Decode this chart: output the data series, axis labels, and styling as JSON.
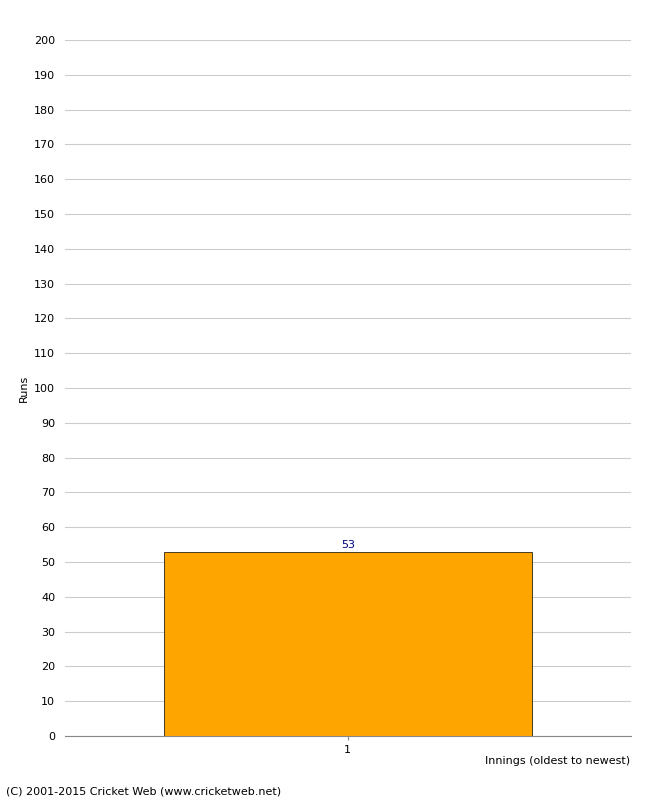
{
  "innings": [
    1
  ],
  "runs": [
    53
  ],
  "bar_color": "#FFA500",
  "bar_edgecolor": "#000000",
  "xlabel": "Innings (oldest to newest)",
  "ylabel": "Runs",
  "ylim": [
    0,
    200
  ],
  "yticks": [
    0,
    10,
    20,
    30,
    40,
    50,
    60,
    70,
    80,
    90,
    100,
    110,
    120,
    130,
    140,
    150,
    160,
    170,
    180,
    190,
    200
  ],
  "value_label_color": "#000080",
  "value_label_fontsize": 8,
  "axis_label_fontsize": 8,
  "tick_label_fontsize": 8,
  "footer_text": "(C) 2001-2015 Cricket Web (www.cricketweb.net)",
  "footer_fontsize": 8,
  "background_color": "#ffffff",
  "grid_color": "#cccccc",
  "bar_width": 0.65,
  "xlim": [
    0.5,
    1.5
  ]
}
